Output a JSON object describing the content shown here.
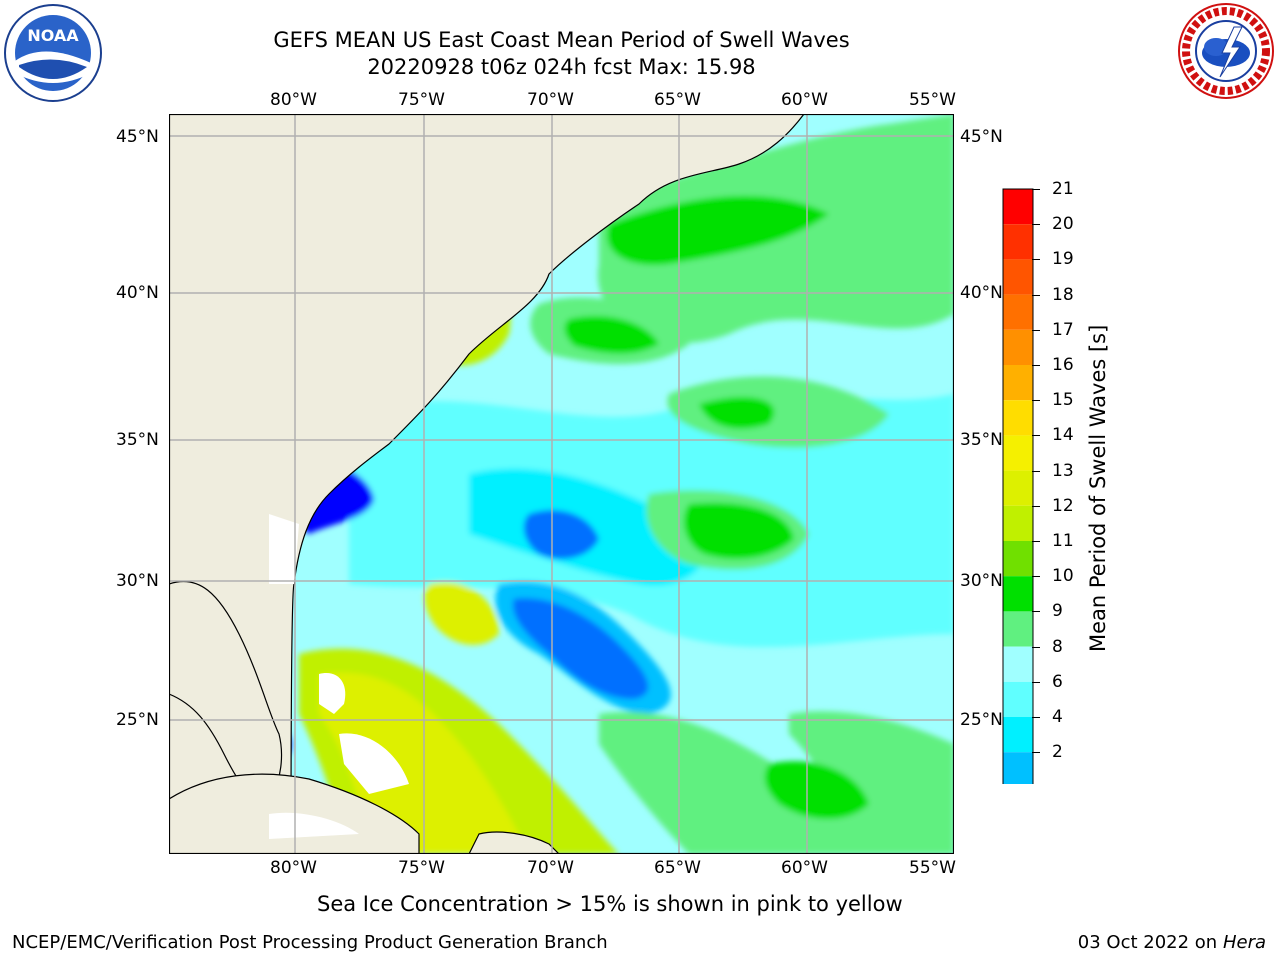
{
  "header": {
    "title_line1": "GEFS MEAN US East Coast Mean Period of Swell Waves",
    "title_line2": "20220928 t06z 024h fcst   Max: 15.98"
  },
  "logos": {
    "left": {
      "icon": "noaa-logo",
      "text": "NOAA",
      "ring_text": "NATIONAL OCEANIC AND ATMOSPHERIC ADMINISTRATION · U.S. DEPARTMENT OF COMMERCE"
    },
    "right": {
      "icon": "nws-logo",
      "ring_text": "NATIONAL WEATHER SERVICE"
    }
  },
  "map": {
    "lon_labels": [
      "80°W",
      "75°W",
      "70°W",
      "65°W",
      "60°W",
      "55°W"
    ],
    "lat_labels": [
      "45°N",
      "40°N",
      "35°N",
      "30°N",
      "25°N"
    ],
    "colors": {
      "land": "#efedde",
      "grid": "#b0b0b0",
      "ice": "#ffffff",
      "coast": "#000000"
    }
  },
  "colorbar": {
    "label": "Mean Period of Swell Waves [s]",
    "ticks": [
      "21",
      "20",
      "19",
      "18",
      "17",
      "16",
      "15",
      "14",
      "13",
      "12",
      "11",
      "10",
      "9",
      "8",
      "6",
      "4",
      "2"
    ],
    "colors": [
      "#ff0000",
      "#ff3000",
      "#ff5500",
      "#ff7000",
      "#ff9000",
      "#ffb000",
      "#ffdd00",
      "#f5f000",
      "#ddf000",
      "#c0f000",
      "#70e000",
      "#00e000",
      "#60f080",
      "#a0ffff",
      "#60ffff",
      "#00f0ff",
      "#00c0ff",
      "#0070ff"
    ],
    "extend_color": "#0000ff"
  },
  "notes": {
    "sea_ice": "Sea Ice Concentration > 15% is shown in pink to yellow"
  },
  "footer": {
    "left": "NCEP/EMC/Verification Post Processing Product Generation Branch",
    "date": "03 Oct 2022 on ",
    "machine": "Hera"
  }
}
